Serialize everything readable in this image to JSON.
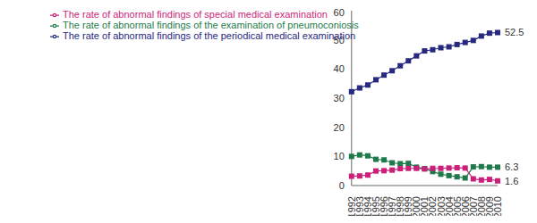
{
  "chart_data": {
    "type": "line",
    "categories": [
      "1992",
      "1993",
      "1994",
      "1995",
      "1996",
      "1997",
      "1998",
      "1999",
      "2000",
      "2001",
      "2002",
      "2003",
      "2004",
      "2005",
      "2006",
      "2007",
      "2008",
      "2009",
      "2010"
    ],
    "series": [
      {
        "name": "The rate of abnormal findings of the periodical medical examination",
        "color": "#27287f",
        "marker": "square",
        "values": [
          32.2,
          33.5,
          34.5,
          36.3,
          37.9,
          39.4,
          41.1,
          42.8,
          44.5,
          46.2,
          46.6,
          47.3,
          47.6,
          48.4,
          49.1,
          49.8,
          51.3,
          52.3,
          52.5
        ]
      },
      {
        "name": "The rate of abnormal findings of the examination of pneumoconiosis",
        "color": "#1e7a4a",
        "marker": "square",
        "values": [
          10.0,
          10.5,
          10.2,
          9.0,
          8.8,
          7.8,
          7.5,
          7.6,
          6.3,
          5.8,
          4.8,
          3.9,
          3.4,
          3.0,
          2.6,
          6.4,
          6.5,
          6.3,
          6.3
        ]
      },
      {
        "name": "The rate of abnormal findings of special medical examination",
        "color": "#cc1f7a",
        "marker": "square",
        "values": [
          3.2,
          3.3,
          3.6,
          5.0,
          5.1,
          5.3,
          5.8,
          5.9,
          5.9,
          5.7,
          5.9,
          5.9,
          6.0,
          6.1,
          6.0,
          2.3,
          1.9,
          2.1,
          1.6
        ]
      }
    ],
    "ylim": [
      0,
      60
    ],
    "yticks": [
      0,
      10,
      20,
      30,
      40,
      50,
      60
    ],
    "grid": false,
    "legend": "upper left",
    "annotations": [
      {
        "x": "2010",
        "y": 52.5,
        "text": "52.5"
      },
      {
        "x": "2010",
        "y": 6.3,
        "text": "6.3"
      },
      {
        "x": "2010",
        "y": 1.6,
        "text": "1.6"
      }
    ]
  }
}
